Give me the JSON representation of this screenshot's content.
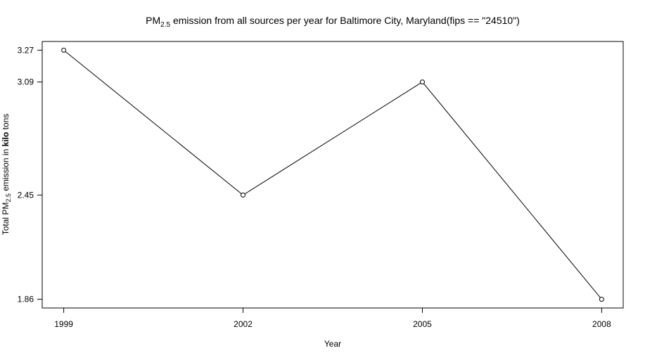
{
  "chart_data": {
    "type": "line",
    "title_prefix": "PM",
    "title_subscript": "2.5",
    "title_suffix": " emission from all sources per year for Baltimore City, Maryland(fips == \"24510\")",
    "xlabel": "Year",
    "ylabel_prefix": "Total PM",
    "ylabel_subscript": "2.5",
    "ylabel_mid": " emission in ",
    "ylabel_bold": "kilo",
    "ylabel_suffix": " tons",
    "x": [
      1999,
      2002,
      2005,
      2008
    ],
    "xticks": [
      "1999",
      "2002",
      "2005",
      "2008"
    ],
    "yticks": [
      1.86,
      2.45,
      3.09,
      3.27
    ],
    "ytick_labels": [
      "1.86",
      "2.45",
      "3.09",
      "3.27"
    ],
    "series": [
      {
        "values": [
          3.27,
          2.45,
          3.09,
          1.86
        ]
      }
    ],
    "xlim": [
      1998.64,
      2008.36
    ],
    "ylim": [
      1.8108,
      3.3192
    ],
    "grid": false,
    "markers": "open-circle",
    "line_color": "#000000"
  }
}
